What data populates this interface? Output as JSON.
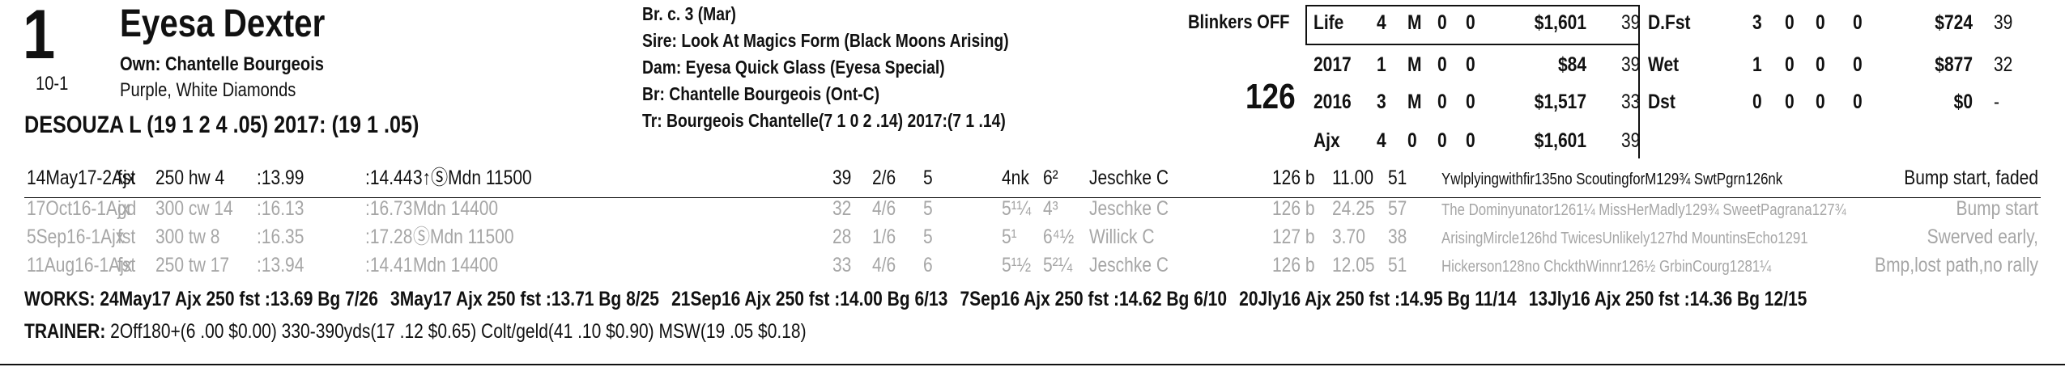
{
  "horse": {
    "post": "1",
    "odds": "10-1",
    "name": "Eyesa Dexter",
    "owner": "Own: Chantelle Bourgeois",
    "silks": "Purple, White Diamonds",
    "jockey": "DESOUZA L (19 1 2 4 .05) 2017: (19 1 .05)"
  },
  "pedigree": {
    "sex_age": "Br. c. 3 (Mar)",
    "sire": "Sire: Look At Magics Form (Black Moons Arising)",
    "dam": "Dam: Eyesa Quick Glass (Eyesa Special)",
    "breeder": "Br:   Chantelle Bourgeois (Ont-C)",
    "trainer": "Tr:   Bourgeois Chantelle(7 1 0 2 .14)  2017:(7 1 .14)"
  },
  "equipment": "Blinkers OFF",
  "weight": "126",
  "record": {
    "rows": [
      [
        "Life",
        "4",
        "M",
        "0",
        "0",
        "$1,601",
        "39"
      ],
      [
        "2017",
        "1",
        "M",
        "0",
        "0",
        "$84",
        "39"
      ],
      [
        "2016",
        "3",
        "M",
        "0",
        "0",
        "$1,517",
        "33"
      ],
      [
        "Ajx",
        "4",
        "0",
        "0",
        "0",
        "$1,601",
        "39"
      ]
    ]
  },
  "surface_record": {
    "rows": [
      [
        "D.Fst",
        "3",
        "0",
        "0",
        "0",
        "$724",
        "39"
      ],
      [
        "Wet",
        "1",
        "0",
        "0",
        "0",
        "$877",
        "32"
      ],
      [
        "Dst",
        "0",
        "0",
        "0",
        "0",
        "$0",
        "-"
      ]
    ]
  },
  "past_performances": {
    "rows": [
      [
        "14May17-2Ajx",
        "fst",
        "250 hw 4",
        ":13.99",
        ":14.44",
        "3↑ⓈMdn 11500",
        "39",
        "2/6",
        "5",
        "4nk",
        "6²",
        "Jeschke C",
        "126 b",
        "11.00",
        "51",
        "Ywlplyingwithfir135no ScoutingforM129¾ SwtPgrn126nk",
        "Bump start, faded"
      ],
      [
        "17Oct16-1Ajx",
        "gd",
        "300 cw 14",
        ":16.13",
        ":16.73",
        "Mdn 14400",
        "32",
        "4/6",
        "5",
        "5¹¼",
        "4³",
        "Jeschke C",
        "126 b",
        "24.25",
        "57",
        "The Dominyunator1261¼ MissHerMadly129¾ SweetPagrana127¾",
        "Bump start"
      ],
      [
        "5Sep16-1Ajx",
        "fst",
        "300 tw 8",
        ":16.35",
        ":17.28",
        "ⓈMdn 11500",
        "28",
        "1/6",
        "5",
        "5¹",
        "6⁴½",
        "Willick C",
        "127 b",
        "3.70",
        "38",
        "ArisingMircle126hd TwicesUnlikely127hd MountinsEcho1291",
        "Swerved early,"
      ],
      [
        "11Aug16-1Ajx",
        "fst",
        "250 tw 17",
        ":13.94",
        ":14.41",
        "Mdn 14400",
        "33",
        "4/6",
        "6",
        "5¹½",
        "5²¼",
        "Jeschke C",
        "126 b",
        "12.05",
        "51",
        "Hickerson128no ChckthWinnr126½ GrbinCourg1281¼",
        "Bmp,lost path,no rally"
      ]
    ]
  },
  "works": {
    "label": "WORKS:",
    "items": [
      "24May17 Ajx 250 fst :13.69 Bg 7/26",
      "3May17 Ajx 250 fst :13.71 Bg 8/25",
      "21Sep16 Ajx 250 fst :14.00 Bg 6/13",
      "7Sep16 Ajx 250 fst :14.62 Bg 6/10",
      "20Jly16 Ajx 250 fst :14.95 Bg 11/14",
      "13Jly16 Ajx 250 fst :14.36 Bg 12/15"
    ]
  },
  "trainer_stats": {
    "label": "TRAINER:",
    "text": "2Off180+(6 .00 $0.00) 330-390yds(17 .12 $0.65) Colt/geld(41 .10 $0.90) MSW(19 .05 $0.18)"
  }
}
